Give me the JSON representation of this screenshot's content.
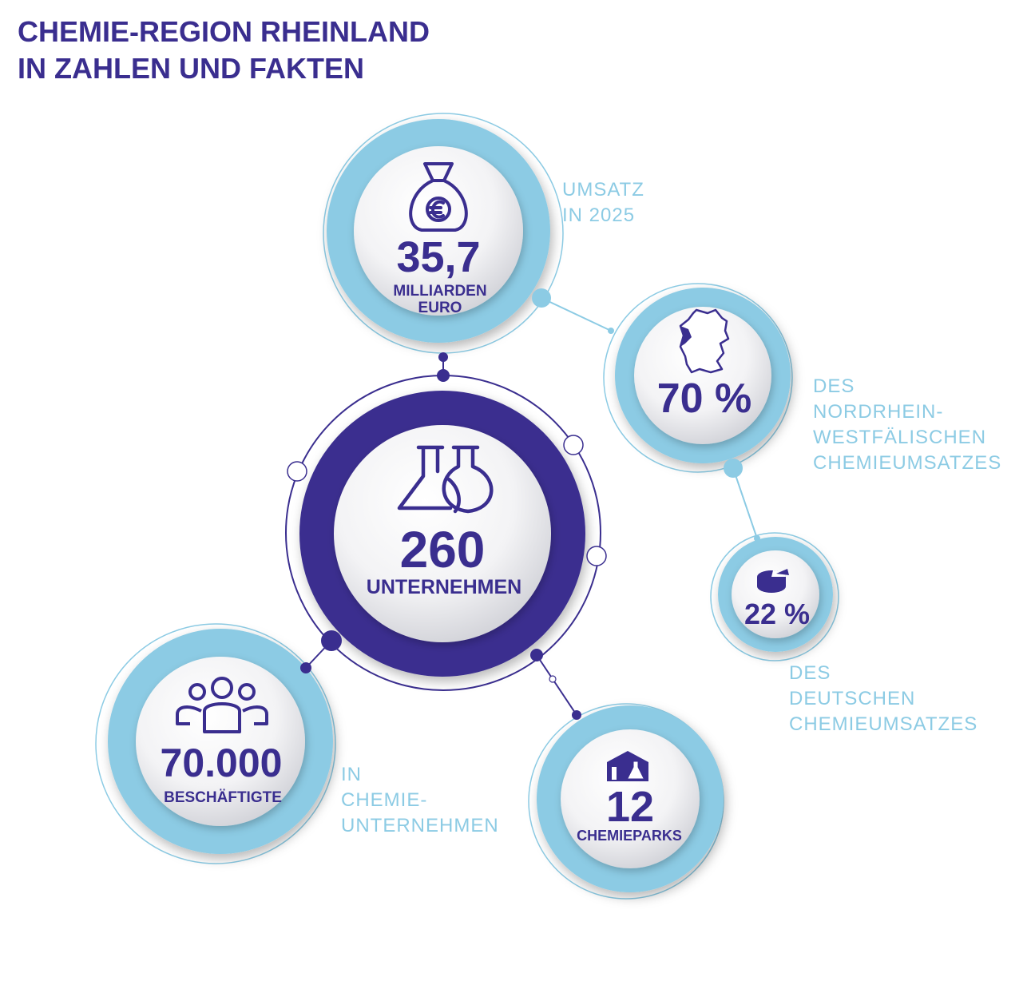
{
  "header": {
    "title_line1": "CHEMIE-REGION RHEINLAND",
    "title_line2": "IN ZAHLEN UND FAKTEN"
  },
  "colors": {
    "primary": "#3a2e8f",
    "accent": "#8ccbe4",
    "text_side": "#8ccbe4",
    "background": "#ffffff"
  },
  "stats": {
    "umsatz": {
      "icon": "money-bag-euro-icon",
      "value": "35,7",
      "label_line1": "MILLIARDEN",
      "label_line2": "EURO",
      "side_line1": "UMSATZ",
      "side_line2": "IN 2025"
    },
    "nrw": {
      "icon": "germany-map-icon",
      "value": "70 %",
      "side_line1": "DES",
      "side_line2": "NORDRHEIN-",
      "side_line3": "WESTFÄLISCHEN",
      "side_line4": "CHEMIEUMSATZES"
    },
    "unternehmen": {
      "icon": "flasks-icon",
      "value": "260",
      "label": "UNTERNEHMEN"
    },
    "deutsch": {
      "icon": "pie-chart-icon",
      "value": "22 %",
      "side_line1": "DES",
      "side_line2": "DEUTSCHEN",
      "side_line3": "CHEMIEUMSATZES"
    },
    "beschaeftigte": {
      "icon": "people-group-icon",
      "value": "70.000",
      "label": "BESCHÄFTIGTE",
      "side_line1": "IN",
      "side_line2": "CHEMIE-",
      "side_line3": "UNTERNEHMEN"
    },
    "chemieparks": {
      "icon": "chemical-park-icon",
      "value": "12",
      "label": "CHEMIEPARKS"
    }
  }
}
